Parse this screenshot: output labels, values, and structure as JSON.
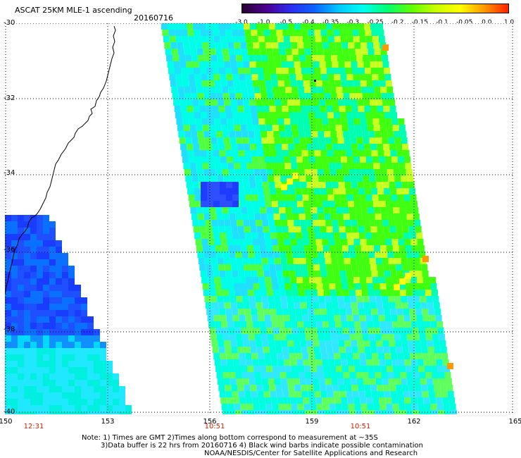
{
  "header": {
    "title": "ASCAT 25KM MLE-1 ascending",
    "date": "20160716"
  },
  "colorbar": {
    "colors": [
      "#2a0030",
      "#4b0090",
      "#2c2cf0",
      "#0a64ff",
      "#00c8ff",
      "#00ffee",
      "#00ff70",
      "#60ff00",
      "#c8ff00",
      "#ffff00",
      "#ff9900",
      "#ff2000"
    ],
    "ticks": [
      "-3.0",
      "-1.0",
      "-0.5",
      "-0.4",
      "-0.35",
      "-0.3",
      "-0.25",
      "-0.2",
      "-0.15",
      "-0.1",
      "-0.05",
      "0.0",
      "1.0"
    ]
  },
  "axes": {
    "lat_labels": [
      "-30",
      "-32",
      "-34",
      "-36",
      "-38",
      "-40"
    ],
    "lon_labels": [
      "150",
      "153",
      "156",
      "159",
      "162",
      "165"
    ]
  },
  "times": [
    "12:31",
    "10:51",
    "10:51"
  ],
  "notes": {
    "line1": "Note: 1) Times are GMT 2)Times along bottom correspond to measurement at ~35S",
    "line2": "3)Data buffer is 22 hrs from 20160716 4) Black wind barbs indicate possible contamination",
    "line3": "NOAA/NESDIS/Center for Satellite Applications and Research"
  },
  "map_colors": {
    "land_coast": "#000000",
    "grid": "#000000",
    "swath_low": "#1e50ff",
    "swath_mid": "#00ffd8",
    "swath_green": "#40ff10",
    "swath_yellow": "#ffff10"
  }
}
